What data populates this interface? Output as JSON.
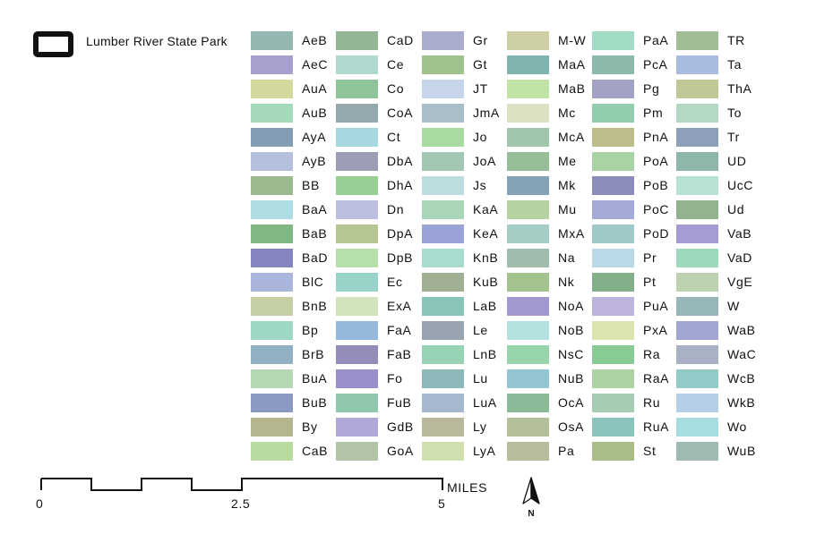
{
  "boundary": {
    "label": "Lumber River State Park",
    "icon": "rounded-rectangle-outline"
  },
  "legend": {
    "columns": [
      [
        {
          "code": "AeB",
          "color": "#93b8b1"
        },
        {
          "code": "AeC",
          "color": "#a7a0ce"
        },
        {
          "code": "AuA",
          "color": "#d4d79e"
        },
        {
          "code": "AuB",
          "color": "#a4d9b9"
        },
        {
          "code": "AyA",
          "color": "#839db5"
        },
        {
          "code": "AyB",
          "color": "#b3bfdb"
        },
        {
          "code": "BB",
          "color": "#9cba8d"
        },
        {
          "code": "BaA",
          "color": "#addde2"
        },
        {
          "code": "BaB",
          "color": "#80b883"
        },
        {
          "code": "BaD",
          "color": "#8684be"
        },
        {
          "code": "BlC",
          "color": "#aab5dc"
        },
        {
          "code": "BnB",
          "color": "#c4cfa4"
        },
        {
          "code": "Bp",
          "color": "#9fd8c2"
        },
        {
          "code": "BrB",
          "color": "#8fb1c3"
        },
        {
          "code": "BuA",
          "color": "#b5d7b3"
        },
        {
          "code": "BuB",
          "color": "#8b98c2"
        },
        {
          "code": "By",
          "color": "#b5b68d"
        },
        {
          "code": "CaB",
          "color": "#b8dc9f"
        }
      ],
      [
        {
          "code": "CaD",
          "color": "#94b596"
        },
        {
          "code": "Ce",
          "color": "#b2d9cf"
        },
        {
          "code": "Co",
          "color": "#8dc499"
        },
        {
          "code": "CoA",
          "color": "#95a8ad"
        },
        {
          "code": "Ct",
          "color": "#a6d9df"
        },
        {
          "code": "DbA",
          "color": "#9c9cb5"
        },
        {
          "code": "DhA",
          "color": "#95cf93"
        },
        {
          "code": "Dn",
          "color": "#bdbfe0"
        },
        {
          "code": "DpA",
          "color": "#b6c691"
        },
        {
          "code": "DpB",
          "color": "#b6dfab"
        },
        {
          "code": "Ec",
          "color": "#99d2c8"
        },
        {
          "code": "ExA",
          "color": "#d2e4bd"
        },
        {
          "code": "FaA",
          "color": "#95b9dc"
        },
        {
          "code": "FaB",
          "color": "#968cba"
        },
        {
          "code": "Fo",
          "color": "#9890c8"
        },
        {
          "code": "FuB",
          "color": "#8fc8ad"
        },
        {
          "code": "GdB",
          "color": "#b0a8d8"
        },
        {
          "code": "GoA",
          "color": "#b3c5a9"
        }
      ],
      [
        {
          "code": "Gr",
          "color": "#a9accd"
        },
        {
          "code": "Gt",
          "color": "#9fc28d"
        },
        {
          "code": "JT",
          "color": "#c6d5e9"
        },
        {
          "code": "JmA",
          "color": "#a9bec9"
        },
        {
          "code": "Jo",
          "color": "#a8dba0"
        },
        {
          "code": "JoA",
          "color": "#a2c8b3"
        },
        {
          "code": "Js",
          "color": "#bddde0"
        },
        {
          "code": "KaA",
          "color": "#a9d6b7"
        },
        {
          "code": "KeA",
          "color": "#9aa3d6"
        },
        {
          "code": "KnB",
          "color": "#a8dccf"
        },
        {
          "code": "KuB",
          "color": "#a0af94"
        },
        {
          "code": "LaB",
          "color": "#8ac3b8"
        },
        {
          "code": "Le",
          "color": "#98a5b1"
        },
        {
          "code": "LnB",
          "color": "#98d3b6"
        },
        {
          "code": "Lu",
          "color": "#8db8ba"
        },
        {
          "code": "LuA",
          "color": "#a6b7d0"
        },
        {
          "code": "Ly",
          "color": "#bab89c"
        },
        {
          "code": "LyA",
          "color": "#cfe0ae"
        }
      ],
      [
        {
          "code": "M-W",
          "color": "#cdcfa3"
        },
        {
          "code": "MaA",
          "color": "#80b4b0"
        },
        {
          "code": "MaB",
          "color": "#c1e3a6"
        },
        {
          "code": "Mc",
          "color": "#dde0c3"
        },
        {
          "code": "McA",
          "color": "#a0c7ab"
        },
        {
          "code": "Me",
          "color": "#98bd99"
        },
        {
          "code": "Mk",
          "color": "#83a3b4"
        },
        {
          "code": "Mu",
          "color": "#b6d2a2"
        },
        {
          "code": "MxA",
          "color": "#a6cdc5"
        },
        {
          "code": "Na",
          "color": "#9fbcad"
        },
        {
          "code": "Nk",
          "color": "#a4c28e"
        },
        {
          "code": "NoA",
          "color": "#a098ce"
        },
        {
          "code": "NoB",
          "color": "#b3e1df"
        },
        {
          "code": "NsC",
          "color": "#98d5ad"
        },
        {
          "code": "NuB",
          "color": "#93c6d0"
        },
        {
          "code": "OcA",
          "color": "#89bb99"
        },
        {
          "code": "OsA",
          "color": "#b4c097"
        },
        {
          "code": "Pa",
          "color": "#b8bc9d"
        }
      ],
      [
        {
          "code": "PaA",
          "color": "#a2dcc4"
        },
        {
          "code": "PcA",
          "color": "#8bb9aa"
        },
        {
          "code": "Pg",
          "color": "#a2a2c6"
        },
        {
          "code": "Pm",
          "color": "#92cdae"
        },
        {
          "code": "PnA",
          "color": "#bdbd89"
        },
        {
          "code": "PoA",
          "color": "#a8d3a4"
        },
        {
          "code": "PoB",
          "color": "#8c8cbc"
        },
        {
          "code": "PoC",
          "color": "#a4aad8"
        },
        {
          "code": "PoD",
          "color": "#9fc8c9"
        },
        {
          "code": "Pr",
          "color": "#bad9e6"
        },
        {
          "code": "Pt",
          "color": "#83b08a"
        },
        {
          "code": "PuA",
          "color": "#bdb3dc"
        },
        {
          "code": "PxA",
          "color": "#dbe4ad"
        },
        {
          "code": "Ra",
          "color": "#89cb95"
        },
        {
          "code": "RaA",
          "color": "#aed2a2"
        },
        {
          "code": "Ru",
          "color": "#a7ccb4"
        },
        {
          "code": "RuA",
          "color": "#8bc3bd"
        },
        {
          "code": "St",
          "color": "#a9bd87"
        }
      ],
      [
        {
          "code": "TR",
          "color": "#a1bd98"
        },
        {
          "code": "Ta",
          "color": "#a9bbe0"
        },
        {
          "code": "ThA",
          "color": "#c0c795"
        },
        {
          "code": "To",
          "color": "#b3d9c5"
        },
        {
          "code": "Tr",
          "color": "#8e9fba"
        },
        {
          "code": "UD",
          "color": "#8fb7a7"
        },
        {
          "code": "UcC",
          "color": "#b7e1d3"
        },
        {
          "code": "Ud",
          "color": "#93b290"
        },
        {
          "code": "VaB",
          "color": "#a49cd3"
        },
        {
          "code": "VaD",
          "color": "#9ed9bb"
        },
        {
          "code": "VgE",
          "color": "#bcd2b0"
        },
        {
          "code": "W",
          "color": "#97b6b9"
        },
        {
          "code": "WaB",
          "color": "#a1a6d2"
        },
        {
          "code": "WaC",
          "color": "#a9b1c4"
        },
        {
          "code": "WcB",
          "color": "#91cac7"
        },
        {
          "code": "WkB",
          "color": "#b5d0e6"
        },
        {
          "code": "Wo",
          "color": "#a7dce1"
        },
        {
          "code": "WuB",
          "color": "#9fbab3"
        }
      ]
    ]
  },
  "scale": {
    "labels": [
      "0",
      "2.5",
      "5"
    ],
    "unit": "MILES"
  },
  "north_arrow": {
    "label": "N",
    "icon": "north-arrow-icon"
  }
}
